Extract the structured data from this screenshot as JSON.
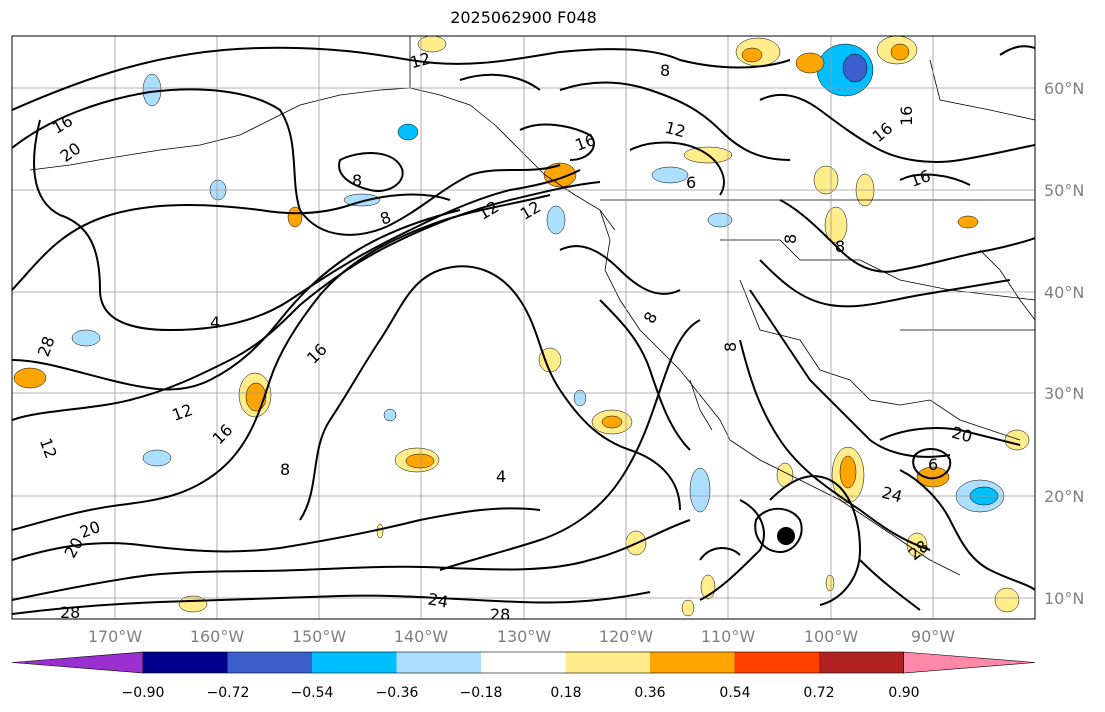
{
  "title": "2025062900 F048",
  "longitude_labels": [
    "170°W",
    "160°W",
    "150°W",
    "140°W",
    "130°W",
    "120°W",
    "110°W",
    "100°W",
    "90°W"
  ],
  "latitude_labels": [
    "60°N",
    "50°N",
    "40°N",
    "30°N",
    "20°N",
    "10°N"
  ],
  "colorbar": {
    "ticks": [
      "−0.90",
      "−0.72",
      "−0.54",
      "−0.36",
      "−0.18",
      "0.18",
      "0.36",
      "0.54",
      "0.72",
      "0.90"
    ],
    "colors": [
      "#9b30d0",
      "#00008c",
      "#3a5fcd",
      "#00bfff",
      "#acdffe",
      "#ffffff",
      "#ffec8b",
      "#ffa500",
      "#ff4000",
      "#b22222",
      "#ff88aa"
    ]
  },
  "contour_labels": [
    "12",
    "8",
    "16",
    "20",
    "16",
    "8",
    "12",
    "8",
    "16",
    "4",
    "28",
    "16",
    "12",
    "12",
    "16",
    "8",
    "20",
    "4",
    "20",
    "28",
    "24",
    "28",
    "12",
    "16",
    "6",
    "8",
    "8",
    "8",
    "8",
    "16",
    "12",
    "20",
    "24",
    "28",
    "6"
  ]
}
